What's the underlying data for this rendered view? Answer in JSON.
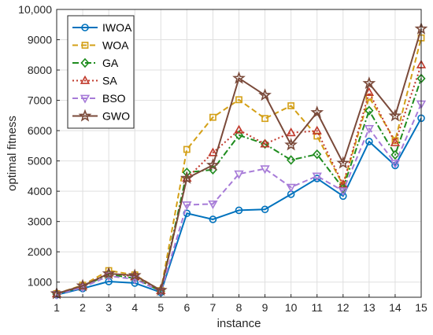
{
  "chart_data": {
    "type": "line",
    "xlabel": "instance",
    "ylabel": "optimal fitness",
    "x": [
      1,
      2,
      3,
      4,
      5,
      6,
      7,
      8,
      9,
      10,
      11,
      12,
      13,
      14,
      15
    ],
    "xlim": [
      1,
      15
    ],
    "ylim": [
      500,
      10000
    ],
    "yticks": [
      1000,
      2000,
      3000,
      4000,
      5000,
      6000,
      7000,
      8000,
      9000,
      10000
    ],
    "ytick_labels": [
      "1000",
      "2000",
      "3000",
      "4000",
      "5000",
      "6000",
      "7000",
      "8000",
      "9000",
      "10,000"
    ],
    "grid": true,
    "legend_position": "top-left",
    "series": [
      {
        "name": "IWOA",
        "color": "#0072BD",
        "dash": "solid",
        "marker": "circle",
        "values": [
          580,
          790,
          1020,
          970,
          660,
          3270,
          3070,
          3370,
          3400,
          3900,
          4420,
          3840,
          5640,
          4850,
          6410
        ]
      },
      {
        "name": "WOA",
        "color": "#D4A017",
        "dash": "dashed",
        "marker": "square",
        "values": [
          620,
          900,
          1380,
          1240,
          720,
          5380,
          6440,
          7020,
          6400,
          6820,
          5820,
          4200,
          7100,
          5670,
          9060
        ]
      },
      {
        "name": "GA",
        "color": "#1E8C1E",
        "dash": "dashdot",
        "marker": "diamond",
        "values": [
          600,
          860,
          1250,
          1130,
          700,
          4620,
          4710,
          5850,
          5560,
          5030,
          5220,
          4100,
          6660,
          5200,
          7720
        ]
      },
      {
        "name": "SA",
        "color": "#C0392B",
        "dash": "dotted",
        "marker": "triangle-up",
        "values": [
          610,
          870,
          1300,
          1180,
          720,
          4430,
          5270,
          6020,
          5560,
          5930,
          5990,
          4220,
          7260,
          5600,
          8170
        ]
      },
      {
        "name": "BSO",
        "color": "#A77BD8",
        "dash": "dashed",
        "marker": "triangle-down",
        "values": [
          590,
          830,
          1200,
          1100,
          690,
          3550,
          3580,
          4570,
          4740,
          4130,
          4500,
          4010,
          6070,
          4920,
          6880
        ]
      },
      {
        "name": "GWO",
        "color": "#7A4A3A",
        "dash": "solid",
        "marker": "star",
        "values": [
          620,
          880,
          1280,
          1220,
          730,
          4430,
          4860,
          7730,
          7170,
          5530,
          6600,
          4930,
          7560,
          6490,
          9360
        ]
      }
    ]
  }
}
